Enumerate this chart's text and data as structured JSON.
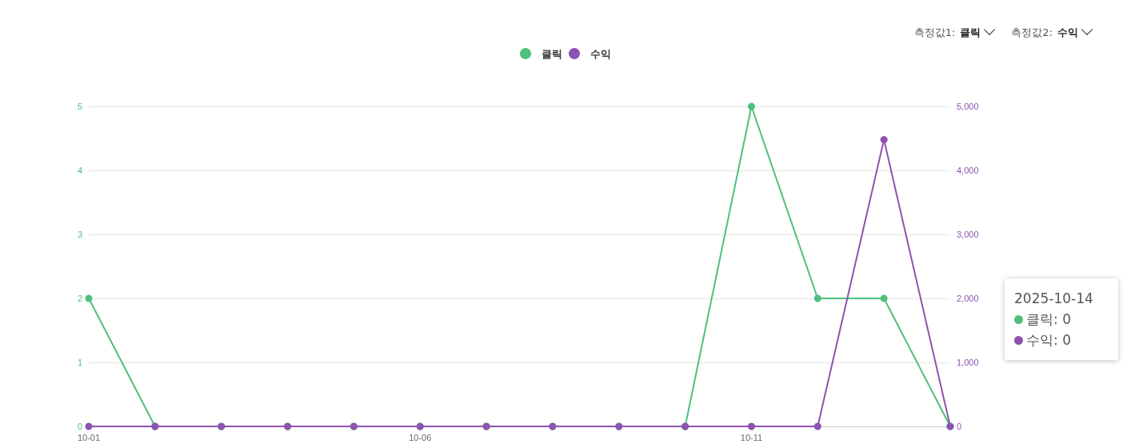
{
  "chart_data": {
    "type": "line",
    "categories": [
      "10-01",
      null,
      null,
      null,
      null,
      "10-06",
      null,
      null,
      null,
      null,
      "10-11",
      null,
      null,
      null
    ],
    "series": [
      {
        "name": "클릭",
        "color": "#4fc07c",
        "values": [
          2,
          0,
          0,
          0,
          0,
          0,
          0,
          0,
          0,
          0,
          5,
          2,
          2,
          0
        ]
      },
      {
        "name": "수익",
        "color": "#8e52b0",
        "axis": "y2",
        "values": [
          0,
          0,
          0,
          0,
          0,
          0,
          0,
          0,
          0,
          0,
          0,
          0,
          4480,
          0
        ]
      }
    ],
    "ylim": [
      0,
      5
    ],
    "yticks": [
      0,
      1,
      2,
      3,
      4,
      5
    ],
    "y2lim": [
      0,
      5000
    ],
    "y2ticks": [
      0,
      {
        "value": 1000,
        "label": "1,000"
      },
      {
        "value": 2000,
        "label": "2,000"
      },
      {
        "value": 3000,
        "label": "3,000"
      },
      {
        "value": 4000,
        "label": "4,000"
      },
      {
        "value": 5000,
        "label": "5,000"
      }
    ],
    "grid": "y",
    "legend": "top",
    "marker": "circle",
    "line_style": "solid",
    "annotations": [
      "측정값1:",
      "클릭",
      "측정값2:",
      "수익",
      "2025-10-14",
      "클릭: 0",
      "수익: 0"
    ]
  }
}
